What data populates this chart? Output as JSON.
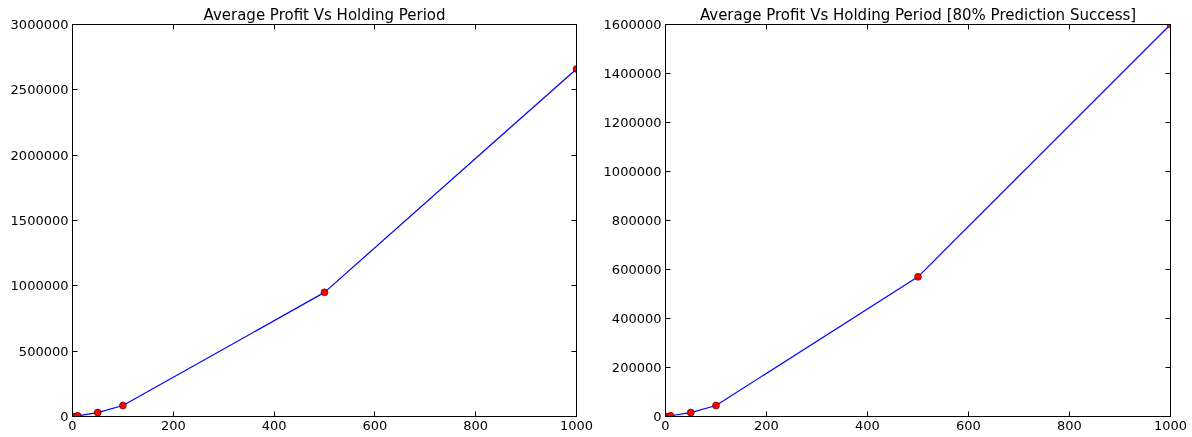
{
  "chart_data": [
    {
      "type": "line",
      "title": "Average Profit Vs Holding Period",
      "x": [
        1,
        10,
        50,
        100,
        500,
        1000
      ],
      "series": [
        {
          "color": "#0000ff",
          "marker": "none",
          "values": [
            0,
            5000,
            30000,
            84000,
            950000,
            2660000
          ]
        },
        {
          "type": "scatter",
          "color": "#ff0000",
          "marker": "circle",
          "values": [
            0,
            5000,
            30000,
            84000,
            950000,
            2660000
          ]
        }
      ],
      "xlim": [
        0,
        1000
      ],
      "ylim": [
        0,
        3000000
      ],
      "xticks": [
        0,
        200,
        400,
        600,
        800,
        1000
      ],
      "yticks": [
        0,
        500000,
        1000000,
        1500000,
        2000000,
        2500000,
        3000000
      ],
      "grid": false
    },
    {
      "type": "line",
      "title": "Average Profit Vs Holding Period [80% Prediction Success]",
      "x": [
        1,
        10,
        50,
        100,
        500,
        1000
      ],
      "series": [
        {
          "color": "#0000ff",
          "marker": "none",
          "values": [
            0,
            3000,
            16000,
            45000,
            570000,
            1600000
          ]
        },
        {
          "type": "scatter",
          "color": "#ff0000",
          "marker": "circle",
          "values": [
            0,
            3000,
            16000,
            45000,
            570000,
            1600000
          ]
        }
      ],
      "xlim": [
        0,
        1000
      ],
      "ylim": [
        0,
        1600000
      ],
      "xticks": [
        0,
        200,
        400,
        600,
        800,
        1000
      ],
      "yticks": [
        0,
        200000,
        400000,
        600000,
        800000,
        1000000,
        1200000,
        1400000,
        1600000
      ],
      "grid": false
    }
  ]
}
